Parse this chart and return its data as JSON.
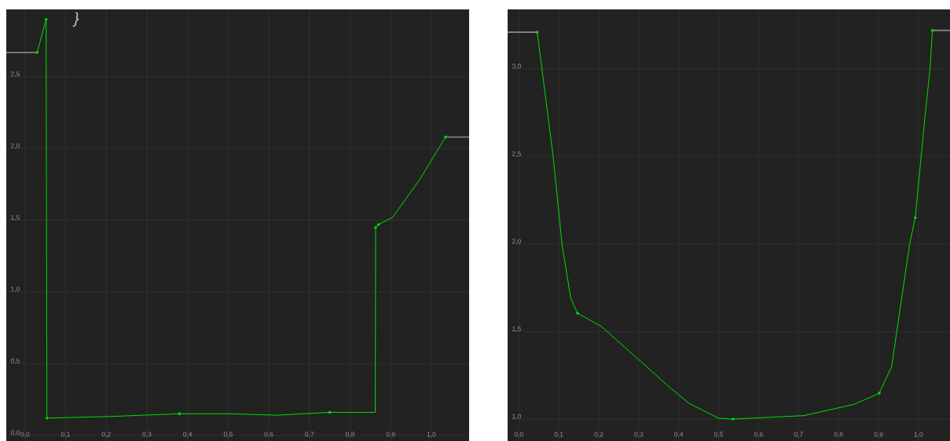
{
  "chart_data": [
    {
      "type": "line",
      "xlim": [
        -0.046,
        1.093
      ],
      "ylim": [
        -0.04,
        2.97
      ],
      "xticks": [
        {
          "value": 0,
          "label": "0,0"
        },
        {
          "value": 0.1,
          "label": "0,1"
        },
        {
          "value": 0.2,
          "label": "0,2"
        },
        {
          "value": 0.3,
          "label": "0,3"
        },
        {
          "value": 0.4,
          "label": "0,4"
        },
        {
          "value": 0.5,
          "label": "0,5"
        },
        {
          "value": 0.6,
          "label": "0,6"
        },
        {
          "value": 0.7,
          "label": "0,7"
        },
        {
          "value": 0.8,
          "label": "0,8"
        },
        {
          "value": 0.9,
          "label": "0,9"
        },
        {
          "value": 1.0,
          "label": "1,0"
        }
      ],
      "yticks": [
        {
          "value": 0,
          "label": "0,0"
        },
        {
          "value": 0.5,
          "label": "0,5"
        },
        {
          "value": 1.0,
          "label": "1,0"
        },
        {
          "value": 1.5,
          "label": "1,5"
        },
        {
          "value": 2.0,
          "label": "2,0"
        },
        {
          "value": 2.5,
          "label": "2,5"
        }
      ],
      "grid": true,
      "annotations": [
        "}"
      ],
      "series": [
        {
          "type": "line",
          "color": "#7f7f7f",
          "x": [
            -0.046,
            0.03
          ],
          "values": [
            2.67,
            2.67
          ]
        },
        {
          "type": "line",
          "color": "#7f7f7f",
          "x": [
            1.035,
            1.093
          ],
          "values": [
            2.08,
            2.08
          ]
        },
        {
          "type": "line",
          "color": "#00e000",
          "x": [
            0.03,
            0.052,
            0.054,
            0.2,
            0.38,
            0.5,
            0.62,
            0.75,
            0.862,
            0.863,
            0.87,
            0.905,
            0.973,
            1.035
          ],
          "values": [
            2.67,
            2.9,
            0.12,
            0.13,
            0.15,
            0.15,
            0.14,
            0.16,
            0.16,
            1.45,
            1.47,
            1.52,
            1.79,
            2.08
          ]
        },
        {
          "type": "scatter",
          "marker": "circle",
          "color": "#00e000",
          "x": [
            0.03,
            0.052,
            0.054,
            0.38,
            0.75,
            0.863,
            0.87,
            1.035
          ],
          "values": [
            2.67,
            2.9,
            0.12,
            0.15,
            0.16,
            1.45,
            1.47,
            2.08
          ]
        }
      ]
    },
    {
      "type": "line",
      "xlim": [
        -0.028,
        1.079
      ],
      "ylim": [
        0.875,
        3.34
      ],
      "xticks": [
        {
          "value": 0,
          "label": "0,0"
        },
        {
          "value": 0.1,
          "label": "0,1"
        },
        {
          "value": 0.2,
          "label": "0,2"
        },
        {
          "value": 0.3,
          "label": "0,3"
        },
        {
          "value": 0.4,
          "label": "0,4"
        },
        {
          "value": 0.5,
          "label": "0,5"
        },
        {
          "value": 0.6,
          "label": "0,6"
        },
        {
          "value": 0.7,
          "label": "0,7"
        },
        {
          "value": 0.8,
          "label": "0,8"
        },
        {
          "value": 0.9,
          "label": "0,9"
        },
        {
          "value": 1.0,
          "label": "1,0"
        }
      ],
      "yticks": [
        {
          "value": 1.0,
          "label": "1,0"
        },
        {
          "value": 1.5,
          "label": "1,5"
        },
        {
          "value": 2.0,
          "label": "2,0"
        },
        {
          "value": 2.5,
          "label": "2,5"
        },
        {
          "value": 3.0,
          "label": "3,0"
        }
      ],
      "grid": true,
      "series": [
        {
          "type": "line",
          "color": "#7f7f7f",
          "x": [
            -0.028,
            0.046
          ],
          "values": [
            3.21,
            3.21
          ]
        },
        {
          "type": "line",
          "color": "#7f7f7f",
          "x": [
            1.035,
            1.079
          ],
          "values": [
            3.22,
            3.22
          ]
        },
        {
          "type": "line",
          "color": "#00e000",
          "x": [
            0.046,
            0.086,
            0.108,
            0.13,
            0.147,
            0.206,
            0.305,
            0.373,
            0.426,
            0.5,
            0.536,
            0.713,
            0.84,
            0.902,
            0.933,
            0.947,
            0.978,
            0.992,
            1.016,
            1.029,
            1.035
          ],
          "values": [
            3.21,
            2.5,
            2.0,
            1.69,
            1.605,
            1.53,
            1.33,
            1.19,
            1.09,
            1.005,
            1.0,
            1.02,
            1.085,
            1.148,
            1.3,
            1.52,
            2.0,
            2.15,
            2.72,
            3.0,
            3.22
          ]
        },
        {
          "type": "scatter",
          "marker": "circle",
          "color": "#00e000",
          "x": [
            0.046,
            0.147,
            0.536,
            0.902,
            0.992,
            1.035
          ],
          "values": [
            3.21,
            1.605,
            1.0,
            1.148,
            2.15,
            3.22
          ]
        }
      ]
    }
  ]
}
